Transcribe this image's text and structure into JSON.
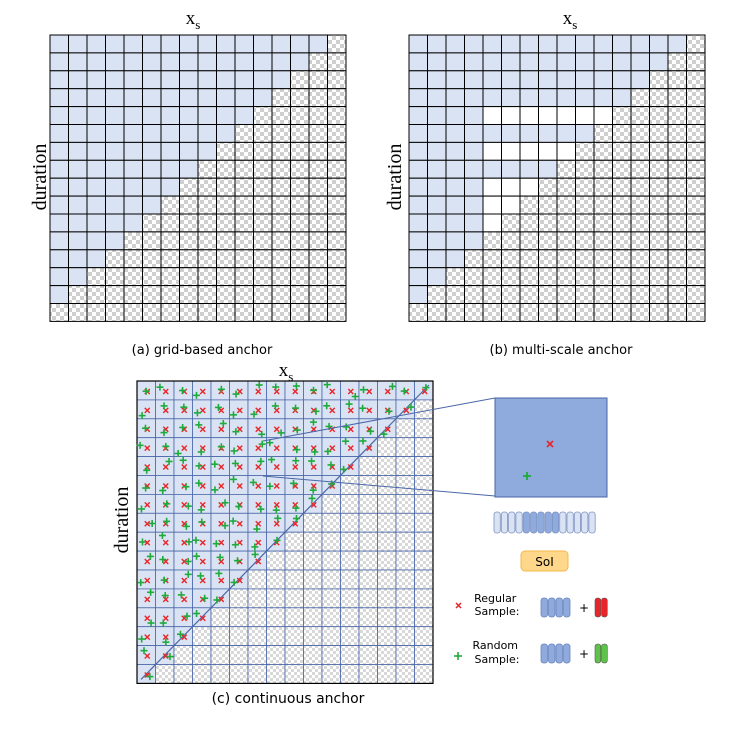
{
  "panels": [
    {
      "id": "a",
      "type": "grid",
      "x_label": "x",
      "x_sub": "s",
      "y_label": "duration",
      "caption": "(a) grid-based anchor"
    },
    {
      "id": "b",
      "type": "multiscale",
      "x_label": "x",
      "x_sub": "s",
      "y_label": "duration",
      "caption": "(b) multi-scale anchor"
    },
    {
      "id": "c",
      "type": "continuous",
      "x_label": "x",
      "x_sub": "s",
      "y_label": "duration",
      "caption": "(c) continuous anchor"
    }
  ],
  "grid_size": 16,
  "multiscale_rows": [
    15,
    14,
    15,
    15,
    4,
    11,
    4,
    8,
    4,
    4,
    4,
    4,
    4,
    4,
    4,
    1
  ],
  "legend": {
    "soi_label": "SoI",
    "regular_label": "Regular\nSample:",
    "random_label": "Random\nSample:",
    "plus_sign": "+"
  },
  "colors": {
    "anchor_fill": "#dae3f3",
    "grid_line": "#000000",
    "checker_dark": "#cfcfcf",
    "checker_light": "#ffffff",
    "regular_marker": "#e8262a",
    "random_marker": "#1faa3c",
    "zoom_fill": "#8faadc",
    "zoom_border": "#4a67a8",
    "soi_fill": "#ffd78a",
    "feature_fill": "#8faadc",
    "regular_head": "#e8262a",
    "random_head": "#5fc24a"
  }
}
